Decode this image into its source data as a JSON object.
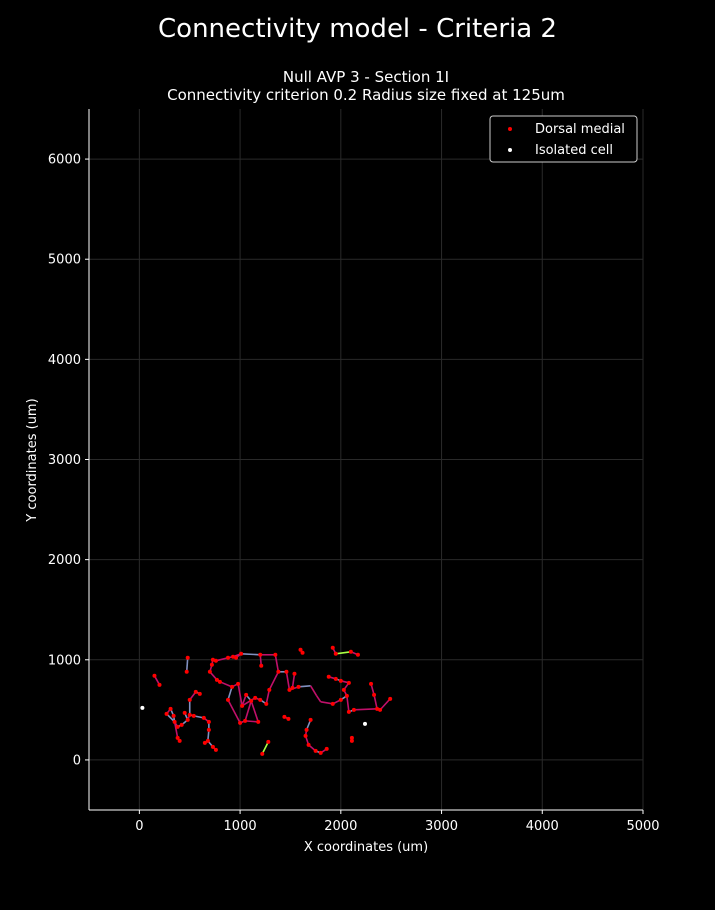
{
  "suptitle": "Connectivity model - Criteria 2",
  "title_line1": "Null AVP 3 - Section 1I",
  "title_line2": "Connectivity criterion 0.2  Radius size fixed at 125um",
  "chart_data": {
    "type": "scatter",
    "xlabel": "X coordinates (um)",
    "ylabel": "Y coordinates (um)",
    "xlim": [
      -500,
      5000
    ],
    "ylim": [
      -500,
      6500
    ],
    "xticks": [
      0,
      1000,
      2000,
      3000,
      4000,
      5000
    ],
    "yticks": [
      0,
      1000,
      2000,
      3000,
      4000,
      5000,
      6000
    ],
    "grid": true,
    "legend_position": "top-right",
    "colors": {
      "dorsal_medial": "#ff0000",
      "isolated": "#ffffff",
      "edge_main": "#c0106a",
      "edge_alt": "#8090c0",
      "edge_bright": "#aaff44"
    },
    "series": [
      {
        "name": "Dorsal medial",
        "color": "#ff0000",
        "points": [
          [
            150,
            840
          ],
          [
            200,
            750
          ],
          [
            480,
            1020
          ],
          [
            470,
            880
          ],
          [
            560,
            680
          ],
          [
            600,
            660
          ],
          [
            270,
            460
          ],
          [
            310,
            510
          ],
          [
            340,
            440
          ],
          [
            350,
            380
          ],
          [
            380,
            220
          ],
          [
            400,
            190
          ],
          [
            380,
            330
          ],
          [
            420,
            350
          ],
          [
            450,
            470
          ],
          [
            480,
            400
          ],
          [
            500,
            450
          ],
          [
            540,
            440
          ],
          [
            500,
            600
          ],
          [
            640,
            420
          ],
          [
            690,
            380
          ],
          [
            690,
            300
          ],
          [
            680,
            190
          ],
          [
            650,
            170
          ],
          [
            730,
            130
          ],
          [
            760,
            100
          ],
          [
            700,
            880
          ],
          [
            720,
            950
          ],
          [
            730,
            1000
          ],
          [
            760,
            990
          ],
          [
            770,
            800
          ],
          [
            800,
            780
          ],
          [
            880,
            1020
          ],
          [
            930,
            1030
          ],
          [
            1010,
            1060
          ],
          [
            960,
            1020
          ],
          [
            920,
            730
          ],
          [
            980,
            760
          ],
          [
            880,
            600
          ],
          [
            1020,
            540
          ],
          [
            1060,
            650
          ],
          [
            1110,
            590
          ],
          [
            1000,
            370
          ],
          [
            1050,
            390
          ],
          [
            1180,
            380
          ],
          [
            1150,
            620
          ],
          [
            1200,
            600
          ],
          [
            1260,
            560
          ],
          [
            1290,
            700
          ],
          [
            1200,
            1050
          ],
          [
            1210,
            940
          ],
          [
            1350,
            1050
          ],
          [
            1380,
            880
          ],
          [
            1460,
            880
          ],
          [
            1490,
            700
          ],
          [
            1580,
            730
          ],
          [
            1540,
            860
          ],
          [
            1520,
            720
          ],
          [
            1600,
            1100
          ],
          [
            1620,
            1070
          ],
          [
            1440,
            430
          ],
          [
            1480,
            410
          ],
          [
            1700,
            400
          ],
          [
            1660,
            300
          ],
          [
            1650,
            240
          ],
          [
            1680,
            150
          ],
          [
            1750,
            90
          ],
          [
            1800,
            70
          ],
          [
            1860,
            110
          ],
          [
            1880,
            830
          ],
          [
            1950,
            810
          ],
          [
            2000,
            790
          ],
          [
            2080,
            770
          ],
          [
            2030,
            700
          ],
          [
            2060,
            640
          ],
          [
            2000,
            600
          ],
          [
            2080,
            480
          ],
          [
            2130,
            500
          ],
          [
            1920,
            560
          ],
          [
            1920,
            1120
          ],
          [
            1950,
            1060
          ],
          [
            2100,
            1080
          ],
          [
            2170,
            1050
          ],
          [
            2300,
            760
          ],
          [
            2330,
            650
          ],
          [
            2360,
            510
          ],
          [
            2390,
            500
          ],
          [
            2490,
            610
          ],
          [
            2110,
            220
          ],
          [
            2110,
            190
          ],
          [
            1220,
            60
          ],
          [
            1280,
            180
          ]
        ]
      },
      {
        "name": "Isolated cell",
        "color": "#ffffff",
        "points": [
          [
            30,
            520
          ],
          [
            2240,
            360
          ]
        ]
      }
    ],
    "edges": [
      [
        [
          150,
          840
        ],
        [
          200,
          750
        ]
      ],
      [
        [
          480,
          1020
        ],
        [
          470,
          880
        ]
      ],
      [
        [
          560,
          680
        ],
        [
          600,
          660
        ]
      ],
      [
        [
          270,
          460
        ],
        [
          310,
          510
        ]
      ],
      [
        [
          310,
          510
        ],
        [
          340,
          440
        ]
      ],
      [
        [
          340,
          440
        ],
        [
          350,
          380
        ]
      ],
      [
        [
          350,
          380
        ],
        [
          380,
          330
        ]
      ],
      [
        [
          380,
          330
        ],
        [
          420,
          350
        ]
      ],
      [
        [
          420,
          350
        ],
        [
          480,
          400
        ]
      ],
      [
        [
          480,
          400
        ],
        [
          500,
          450
        ]
      ],
      [
        [
          450,
          470
        ],
        [
          480,
          400
        ]
      ],
      [
        [
          500,
          450
        ],
        [
          540,
          440
        ]
      ],
      [
        [
          350,
          380
        ],
        [
          380,
          220
        ]
      ],
      [
        [
          380,
          220
        ],
        [
          400,
          190
        ]
      ],
      [
        [
          500,
          450
        ],
        [
          500,
          600
        ]
      ],
      [
        [
          500,
          600
        ],
        [
          560,
          680
        ]
      ],
      [
        [
          270,
          460
        ],
        [
          350,
          380
        ]
      ],
      [
        [
          540,
          440
        ],
        [
          640,
          420
        ]
      ],
      [
        [
          640,
          420
        ],
        [
          690,
          380
        ]
      ],
      [
        [
          690,
          380
        ],
        [
          690,
          300
        ]
      ],
      [
        [
          690,
          300
        ],
        [
          680,
          190
        ]
      ],
      [
        [
          680,
          190
        ],
        [
          650,
          170
        ]
      ],
      [
        [
          680,
          190
        ],
        [
          730,
          130
        ]
      ],
      [
        [
          730,
          130
        ],
        [
          760,
          100
        ]
      ],
      [
        [
          700,
          880
        ],
        [
          720,
          950
        ]
      ],
      [
        [
          720,
          950
        ],
        [
          730,
          1000
        ]
      ],
      [
        [
          730,
          1000
        ],
        [
          760,
          990
        ]
      ],
      [
        [
          760,
          990
        ],
        [
          880,
          1020
        ]
      ],
      [
        [
          880,
          1020
        ],
        [
          930,
          1030
        ]
      ],
      [
        [
          930,
          1030
        ],
        [
          1010,
          1060
        ]
      ],
      [
        [
          1010,
          1060
        ],
        [
          1200,
          1050
        ]
      ],
      [
        [
          1200,
          1050
        ],
        [
          1350,
          1050
        ]
      ],
      [
        [
          1200,
          1050
        ],
        [
          1210,
          940
        ]
      ],
      [
        [
          700,
          880
        ],
        [
          770,
          800
        ]
      ],
      [
        [
          770,
          800
        ],
        [
          800,
          780
        ]
      ],
      [
        [
          800,
          780
        ],
        [
          920,
          730
        ]
      ],
      [
        [
          920,
          730
        ],
        [
          980,
          760
        ]
      ],
      [
        [
          980,
          760
        ],
        [
          1020,
          540
        ]
      ],
      [
        [
          920,
          730
        ],
        [
          880,
          600
        ]
      ],
      [
        [
          880,
          600
        ],
        [
          1000,
          370
        ]
      ],
      [
        [
          1000,
          370
        ],
        [
          1050,
          390
        ]
      ],
      [
        [
          1050,
          390
        ],
        [
          1110,
          590
        ]
      ],
      [
        [
          1110,
          590
        ],
        [
          1060,
          650
        ]
      ],
      [
        [
          1060,
          650
        ],
        [
          1020,
          540
        ]
      ],
      [
        [
          1110,
          590
        ],
        [
          1180,
          380
        ]
      ],
      [
        [
          1150,
          620
        ],
        [
          1200,
          600
        ]
      ],
      [
        [
          1200,
          600
        ],
        [
          1260,
          560
        ]
      ],
      [
        [
          1260,
          560
        ],
        [
          1290,
          700
        ]
      ],
      [
        [
          1290,
          700
        ],
        [
          1380,
          880
        ]
      ],
      [
        [
          1350,
          1050
        ],
        [
          1380,
          880
        ]
      ],
      [
        [
          1380,
          880
        ],
        [
          1460,
          880
        ]
      ],
      [
        [
          1460,
          880
        ],
        [
          1490,
          700
        ]
      ],
      [
        [
          1490,
          700
        ],
        [
          1580,
          730
        ]
      ],
      [
        [
          1540,
          860
        ],
        [
          1520,
          720
        ]
      ],
      [
        [
          1580,
          730
        ],
        [
          1700,
          740
        ]
      ],
      [
        [
          1700,
          740
        ],
        [
          1760,
          640
        ]
      ],
      [
        [
          1760,
          640
        ],
        [
          1800,
          580
        ]
      ],
      [
        [
          1880,
          830
        ],
        [
          1950,
          810
        ]
      ],
      [
        [
          1950,
          810
        ],
        [
          2000,
          790
        ]
      ],
      [
        [
          2000,
          790
        ],
        [
          2080,
          770
        ]
      ],
      [
        [
          2080,
          770
        ],
        [
          2030,
          700
        ]
      ],
      [
        [
          2030,
          700
        ],
        [
          2060,
          640
        ]
      ],
      [
        [
          2060,
          640
        ],
        [
          2000,
          600
        ]
      ],
      [
        [
          2000,
          600
        ],
        [
          1920,
          560
        ]
      ],
      [
        [
          1920,
          560
        ],
        [
          1800,
          580
        ]
      ],
      [
        [
          2060,
          640
        ],
        [
          2080,
          480
        ]
      ],
      [
        [
          2080,
          480
        ],
        [
          2130,
          500
        ]
      ],
      [
        [
          2130,
          500
        ],
        [
          2360,
          510
        ]
      ],
      [
        [
          2360,
          510
        ],
        [
          2330,
          650
        ]
      ],
      [
        [
          2330,
          650
        ],
        [
          2300,
          760
        ]
      ],
      [
        [
          2360,
          510
        ],
        [
          2390,
          500
        ]
      ],
      [
        [
          2390,
          500
        ],
        [
          2490,
          610
        ]
      ],
      [
        [
          1600,
          1100
        ],
        [
          1620,
          1070
        ]
      ],
      [
        [
          1440,
          430
        ],
        [
          1480,
          410
        ]
      ],
      [
        [
          1700,
          400
        ],
        [
          1660,
          300
        ]
      ],
      [
        [
          1660,
          300
        ],
        [
          1650,
          240
        ]
      ],
      [
        [
          1650,
          240
        ],
        [
          1680,
          150
        ]
      ],
      [
        [
          1680,
          150
        ],
        [
          1750,
          90
        ]
      ],
      [
        [
          1750,
          90
        ],
        [
          1800,
          70
        ]
      ],
      [
        [
          1800,
          70
        ],
        [
          1860,
          110
        ]
      ],
      [
        [
          1920,
          1120
        ],
        [
          1950,
          1060
        ]
      ],
      [
        [
          2170,
          1050
        ],
        [
          2100,
          1080
        ]
      ],
      [
        [
          2110,
          220
        ],
        [
          2110,
          190
        ]
      ],
      [
        [
          1020,
          540
        ],
        [
          1150,
          620
        ]
      ],
      [
        [
          1010,
          1060
        ],
        [
          960,
          1020
        ]
      ],
      [
        [
          1050,
          390
        ],
        [
          1180,
          380
        ]
      ],
      [
        [
          1950,
          1060
        ],
        [
          2100,
          1080
        ]
      ],
      [
        [
          1220,
          60
        ],
        [
          1280,
          180
        ]
      ]
    ]
  }
}
